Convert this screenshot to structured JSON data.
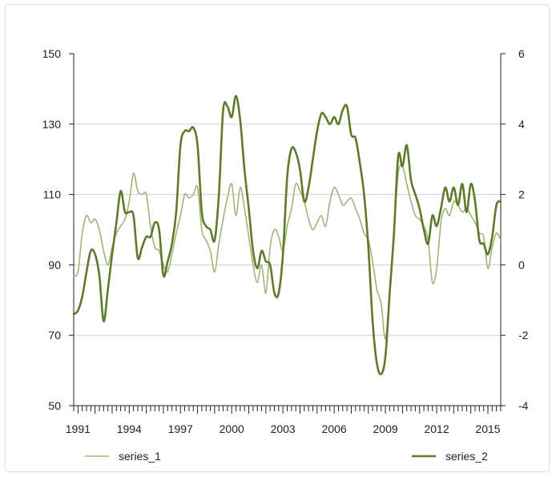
{
  "chart_data": {
    "type": "line",
    "title": "",
    "xlabel": "",
    "ylabel": "",
    "x_axis": {
      "min": 1990.75,
      "max": 2015.75,
      "tick_labels": [
        "1991",
        "1994",
        "1997",
        "2000",
        "2003",
        "2006",
        "2009",
        "2012",
        "2015"
      ],
      "tick_values": [
        1991,
        1994,
        1997,
        2000,
        2003,
        2006,
        2009,
        2012,
        2015
      ],
      "minor_ticks": "quarterly"
    },
    "y_left": {
      "min": 50,
      "max": 150,
      "ticks": [
        50,
        70,
        90,
        110,
        130,
        150
      ]
    },
    "y_right": {
      "min": -4,
      "max": 6,
      "ticks": [
        -4,
        -2,
        0,
        2,
        4,
        6
      ]
    },
    "grid": true,
    "legend_position": "bottom",
    "series": [
      {
        "name": "series_1",
        "axis": "left",
        "color": "#a3b27a",
        "points": [
          [
            1990.75,
            87
          ],
          [
            1991.0,
            88
          ],
          [
            1991.25,
            99
          ],
          [
            1991.5,
            104
          ],
          [
            1991.75,
            102
          ],
          [
            1992.0,
            103
          ],
          [
            1992.25,
            100
          ],
          [
            1992.5,
            94
          ],
          [
            1992.75,
            90
          ],
          [
            1993.0,
            95
          ],
          [
            1993.25,
            99
          ],
          [
            1993.5,
            101
          ],
          [
            1993.75,
            103
          ],
          [
            1994.0,
            108
          ],
          [
            1994.25,
            116
          ],
          [
            1994.5,
            111
          ],
          [
            1994.75,
            110
          ],
          [
            1995.0,
            110
          ],
          [
            1995.25,
            101
          ],
          [
            1995.5,
            95
          ],
          [
            1995.75,
            94
          ],
          [
            1996.0,
            90
          ],
          [
            1996.25,
            88
          ],
          [
            1996.5,
            93
          ],
          [
            1996.75,
            99
          ],
          [
            1997.0,
            104
          ],
          [
            1997.25,
            110
          ],
          [
            1997.5,
            109
          ],
          [
            1997.75,
            110
          ],
          [
            1998.0,
            112
          ],
          [
            1998.25,
            100
          ],
          [
            1998.5,
            97
          ],
          [
            1998.75,
            94
          ],
          [
            1999.0,
            88
          ],
          [
            1999.25,
            96
          ],
          [
            1999.5,
            103
          ],
          [
            1999.75,
            109
          ],
          [
            2000.0,
            113
          ],
          [
            2000.25,
            104
          ],
          [
            2000.5,
            112
          ],
          [
            2000.75,
            106
          ],
          [
            2001.0,
            98
          ],
          [
            2001.25,
            90
          ],
          [
            2001.5,
            85
          ],
          [
            2001.75,
            90
          ],
          [
            2002.0,
            82
          ],
          [
            2002.25,
            95
          ],
          [
            2002.5,
            100
          ],
          [
            2002.75,
            98
          ],
          [
            2003.0,
            94
          ],
          [
            2003.25,
            101
          ],
          [
            2003.5,
            106
          ],
          [
            2003.75,
            113
          ],
          [
            2004.0,
            111
          ],
          [
            2004.25,
            108
          ],
          [
            2004.5,
            103
          ],
          [
            2004.75,
            100
          ],
          [
            2005.0,
            102
          ],
          [
            2005.25,
            104
          ],
          [
            2005.5,
            101
          ],
          [
            2005.75,
            108
          ],
          [
            2006.0,
            112
          ],
          [
            2006.25,
            110
          ],
          [
            2006.5,
            107
          ],
          [
            2006.75,
            108
          ],
          [
            2007.0,
            109
          ],
          [
            2007.25,
            106
          ],
          [
            2007.5,
            103
          ],
          [
            2007.75,
            99
          ],
          [
            2008.0,
            97
          ],
          [
            2008.25,
            91
          ],
          [
            2008.5,
            83
          ],
          [
            2008.75,
            79
          ],
          [
            2009.0,
            69
          ],
          [
            2009.25,
            82
          ],
          [
            2009.5,
            100
          ],
          [
            2009.75,
            116
          ],
          [
            2010.0,
            118
          ],
          [
            2010.25,
            113
          ],
          [
            2010.5,
            108
          ],
          [
            2010.75,
            104
          ],
          [
            2011.0,
            103
          ],
          [
            2011.25,
            101
          ],
          [
            2011.5,
            97
          ],
          [
            2011.75,
            85
          ],
          [
            2012.0,
            89
          ],
          [
            2012.25,
            102
          ],
          [
            2012.5,
            106
          ],
          [
            2012.75,
            104
          ],
          [
            2013.0,
            108
          ],
          [
            2013.25,
            107
          ],
          [
            2013.5,
            105
          ],
          [
            2013.75,
            106
          ],
          [
            2014.0,
            104
          ],
          [
            2014.25,
            102
          ],
          [
            2014.5,
            99
          ],
          [
            2014.75,
            98
          ],
          [
            2015.0,
            89
          ],
          [
            2015.25,
            95
          ],
          [
            2015.5,
            99
          ],
          [
            2015.75,
            97
          ]
        ]
      },
      {
        "name": "series_2",
        "axis": "right",
        "color": "#5e7a2b",
        "points": [
          [
            1990.75,
            -1.4
          ],
          [
            1991.0,
            -1.3
          ],
          [
            1991.25,
            -0.9
          ],
          [
            1991.5,
            -0.2
          ],
          [
            1991.75,
            0.4
          ],
          [
            1992.0,
            0.3
          ],
          [
            1992.25,
            -0.3
          ],
          [
            1992.5,
            -1.6
          ],
          [
            1992.75,
            -0.7
          ],
          [
            1993.0,
            0.3
          ],
          [
            1993.25,
            1.2
          ],
          [
            1993.5,
            2.1
          ],
          [
            1993.75,
            1.5
          ],
          [
            1994.0,
            1.5
          ],
          [
            1994.25,
            1.4
          ],
          [
            1994.5,
            0.2
          ],
          [
            1994.75,
            0.5
          ],
          [
            1995.0,
            0.8
          ],
          [
            1995.25,
            0.8
          ],
          [
            1995.5,
            1.2
          ],
          [
            1995.75,
            1.0
          ],
          [
            1996.0,
            -0.3
          ],
          [
            1996.25,
            0.1
          ],
          [
            1996.5,
            0.6
          ],
          [
            1996.75,
            1.5
          ],
          [
            1997.0,
            3.4
          ],
          [
            1997.25,
            3.8
          ],
          [
            1997.5,
            3.8
          ],
          [
            1997.75,
            3.9
          ],
          [
            1998.0,
            3.4
          ],
          [
            1998.25,
            1.5
          ],
          [
            1998.5,
            1.1
          ],
          [
            1998.75,
            1.0
          ],
          [
            1999.0,
            0.7
          ],
          [
            1999.25,
            2.0
          ],
          [
            1999.5,
            4.4
          ],
          [
            1999.75,
            4.5
          ],
          [
            2000.0,
            4.2
          ],
          [
            2000.25,
            4.8
          ],
          [
            2000.5,
            4.1
          ],
          [
            2000.75,
            2.7
          ],
          [
            2001.0,
            1.6
          ],
          [
            2001.25,
            0.4
          ],
          [
            2001.5,
            -0.1
          ],
          [
            2001.75,
            0.4
          ],
          [
            2002.0,
            0.1
          ],
          [
            2002.25,
            0.0
          ],
          [
            2002.5,
            -0.8
          ],
          [
            2002.75,
            -0.8
          ],
          [
            2003.0,
            0.3
          ],
          [
            2003.25,
            2.5
          ],
          [
            2003.5,
            3.3
          ],
          [
            2003.75,
            3.2
          ],
          [
            2004.0,
            2.7
          ],
          [
            2004.25,
            1.8
          ],
          [
            2004.5,
            2.2
          ],
          [
            2004.75,
            3.0
          ],
          [
            2005.0,
            3.8
          ],
          [
            2005.25,
            4.3
          ],
          [
            2005.5,
            4.2
          ],
          [
            2005.75,
            4.0
          ],
          [
            2006.0,
            4.2
          ],
          [
            2006.25,
            4.0
          ],
          [
            2006.5,
            4.4
          ],
          [
            2006.75,
            4.5
          ],
          [
            2007.0,
            3.7
          ],
          [
            2007.25,
            3.6
          ],
          [
            2007.5,
            2.9
          ],
          [
            2007.75,
            2.0
          ],
          [
            2008.0,
            0.5
          ],
          [
            2008.25,
            -1.6
          ],
          [
            2008.5,
            -2.8
          ],
          [
            2008.75,
            -3.1
          ],
          [
            2009.0,
            -2.6
          ],
          [
            2009.25,
            -0.8
          ],
          [
            2009.5,
            0.9
          ],
          [
            2009.75,
            3.1
          ],
          [
            2010.0,
            2.8
          ],
          [
            2010.25,
            3.4
          ],
          [
            2010.5,
            2.4
          ],
          [
            2010.75,
            2.0
          ],
          [
            2011.0,
            1.6
          ],
          [
            2011.25,
            1.0
          ],
          [
            2011.5,
            0.6
          ],
          [
            2011.75,
            1.4
          ],
          [
            2012.0,
            1.1
          ],
          [
            2012.25,
            1.6
          ],
          [
            2012.5,
            2.2
          ],
          [
            2012.75,
            1.8
          ],
          [
            2013.0,
            2.2
          ],
          [
            2013.25,
            1.7
          ],
          [
            2013.5,
            2.3
          ],
          [
            2013.75,
            1.5
          ],
          [
            2014.0,
            2.3
          ],
          [
            2014.25,
            1.8
          ],
          [
            2014.5,
            0.7
          ],
          [
            2014.75,
            0.6
          ],
          [
            2015.0,
            0.3
          ],
          [
            2015.25,
            0.8
          ],
          [
            2015.5,
            1.7
          ],
          [
            2015.75,
            1.8
          ]
        ]
      }
    ]
  }
}
